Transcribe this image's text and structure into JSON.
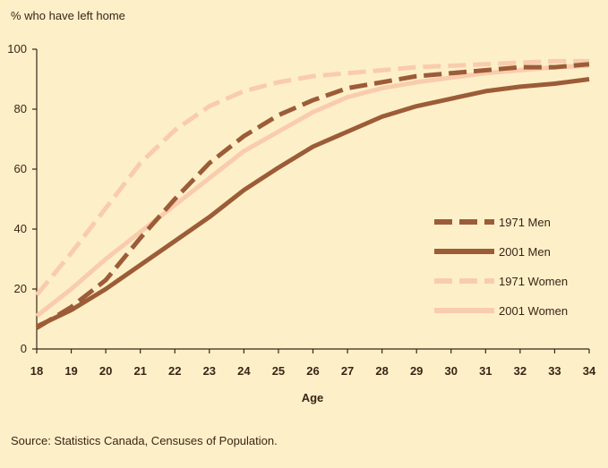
{
  "chart_data": {
    "type": "line",
    "ylabel": "% who have left home",
    "xlabel": "Age",
    "source": "Source: Statistics Canada, Censuses of Population.",
    "x": [
      18,
      19,
      20,
      21,
      22,
      23,
      24,
      25,
      26,
      27,
      28,
      29,
      30,
      31,
      32,
      33,
      34
    ],
    "xlim": [
      18,
      34
    ],
    "ylim": [
      0,
      100
    ],
    "yticks": [
      0,
      20,
      40,
      60,
      80,
      100
    ],
    "grid": false,
    "legend_placement": "right-middle",
    "series": [
      {
        "name": "1971 Men",
        "color": "#9c5c38",
        "dash": true,
        "values": [
          7,
          14,
          23,
          37,
          50,
          62,
          71,
          78,
          83,
          87,
          89,
          91,
          92,
          93,
          94,
          94,
          95
        ]
      },
      {
        "name": "2001 Men",
        "color": "#9c5c38",
        "dash": false,
        "values": [
          7.5,
          13,
          20,
          28,
          36,
          44,
          53,
          60.5,
          67.5,
          72.5,
          77.5,
          81,
          83.5,
          86,
          87.5,
          88.5,
          90
        ]
      },
      {
        "name": "1971 Women",
        "color": "#f9ccad",
        "dash": true,
        "values": [
          18,
          32,
          47,
          62,
          73,
          81,
          86,
          89,
          91,
          92,
          93,
          94,
          94.5,
          95,
          95.5,
          96,
          96
        ]
      },
      {
        "name": "2001 Women",
        "color": "#f9ccad",
        "dash": false,
        "values": [
          11,
          20,
          30,
          39,
          48,
          57,
          66,
          72.5,
          79,
          84,
          87,
          89,
          90.5,
          92,
          93,
          94,
          94.5
        ]
      }
    ]
  }
}
